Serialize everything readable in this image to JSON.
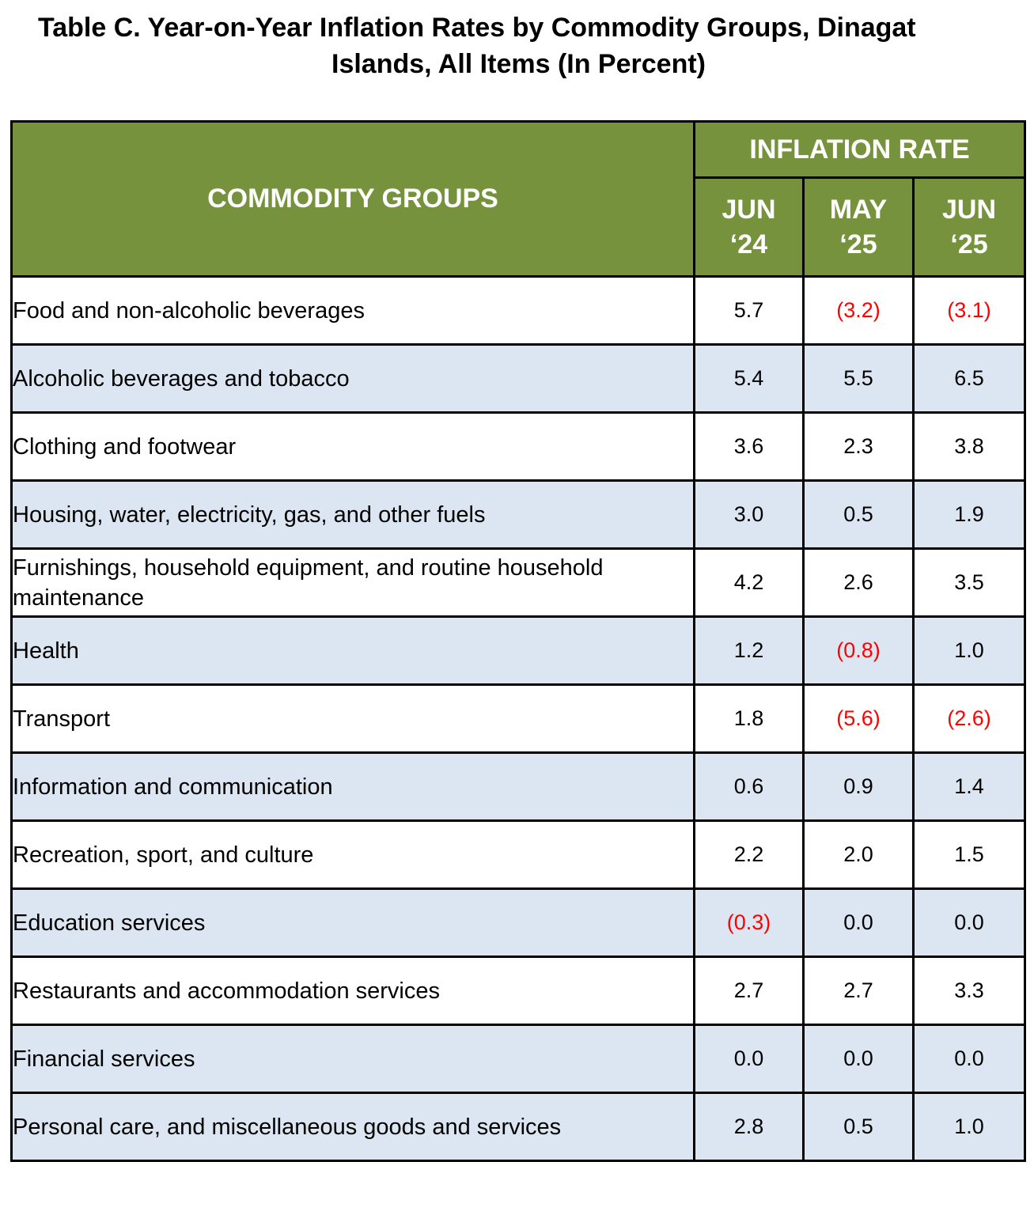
{
  "title": {
    "line1": "Table C. Year-on-Year Inflation Rates by Commodity Groups, Dinagat",
    "line2": "Islands, All Items (In Percent)"
  },
  "header": {
    "groups": "COMMODITY GROUPS",
    "rate": "INFLATION RATE",
    "periods": [
      {
        "month": "JUN",
        "year": "‘24"
      },
      {
        "month": "MAY",
        "year": "‘25"
      },
      {
        "month": "JUN",
        "year": "‘25"
      }
    ]
  },
  "colors": {
    "header_bg": "#76923c",
    "header_text": "#ffffff",
    "alt_row_bg": "#dce6f2",
    "negative_text": "#ff0000"
  },
  "rows": [
    {
      "name": "Food and non-alcoholic beverages",
      "values": [
        "5.7",
        "(3.2)",
        "(3.1)"
      ]
    },
    {
      "name": "Alcoholic beverages and tobacco",
      "values": [
        "5.4",
        "5.5",
        "6.5"
      ]
    },
    {
      "name": "Clothing and footwear",
      "values": [
        "3.6",
        "2.3",
        "3.8"
      ]
    },
    {
      "name": "Housing, water, electricity, gas, and other fuels",
      "values": [
        "3.0",
        "0.5",
        "1.9"
      ]
    },
    {
      "name": "Furnishings, household equipment, and routine household maintenance",
      "values": [
        "4.2",
        "2.6",
        "3.5"
      ]
    },
    {
      "name": "Health",
      "values": [
        "1.2",
        "(0.8)",
        "1.0"
      ]
    },
    {
      "name": "Transport",
      "values": [
        "1.8",
        "(5.6)",
        "(2.6)"
      ]
    },
    {
      "name": "Information and communication",
      "values": [
        "0.6",
        "0.9",
        "1.4"
      ]
    },
    {
      "name": "Recreation, sport, and culture",
      "values": [
        "2.2",
        "2.0",
        "1.5"
      ]
    },
    {
      "name": "Education services",
      "values": [
        "(0.3)",
        "0.0",
        "0.0"
      ]
    },
    {
      "name": "Restaurants and accommodation services",
      "values": [
        "2.7",
        "2.7",
        "3.3"
      ]
    },
    {
      "name": "Financial services",
      "values": [
        "0.0",
        "0.0",
        "0.0"
      ]
    },
    {
      "name": "Personal care, and miscellaneous goods and services",
      "values": [
        "2.8",
        "0.5",
        "1.0"
      ]
    }
  ]
}
